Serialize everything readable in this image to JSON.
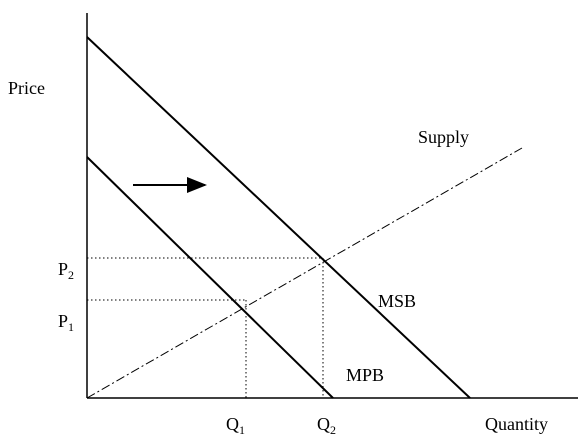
{
  "axes": {
    "y_label": "Price",
    "x_label": "Quantity"
  },
  "curves": {
    "supply": "Supply",
    "msb": "MSB",
    "mpb": "MPB"
  },
  "price_levels": [
    {
      "letter": "P",
      "subscript": "1"
    },
    {
      "letter": "P",
      "subscript": "2"
    }
  ],
  "quantity_levels": [
    {
      "letter": "Q",
      "subscript": "1"
    },
    {
      "letter": "Q",
      "subscript": "2"
    }
  ]
}
